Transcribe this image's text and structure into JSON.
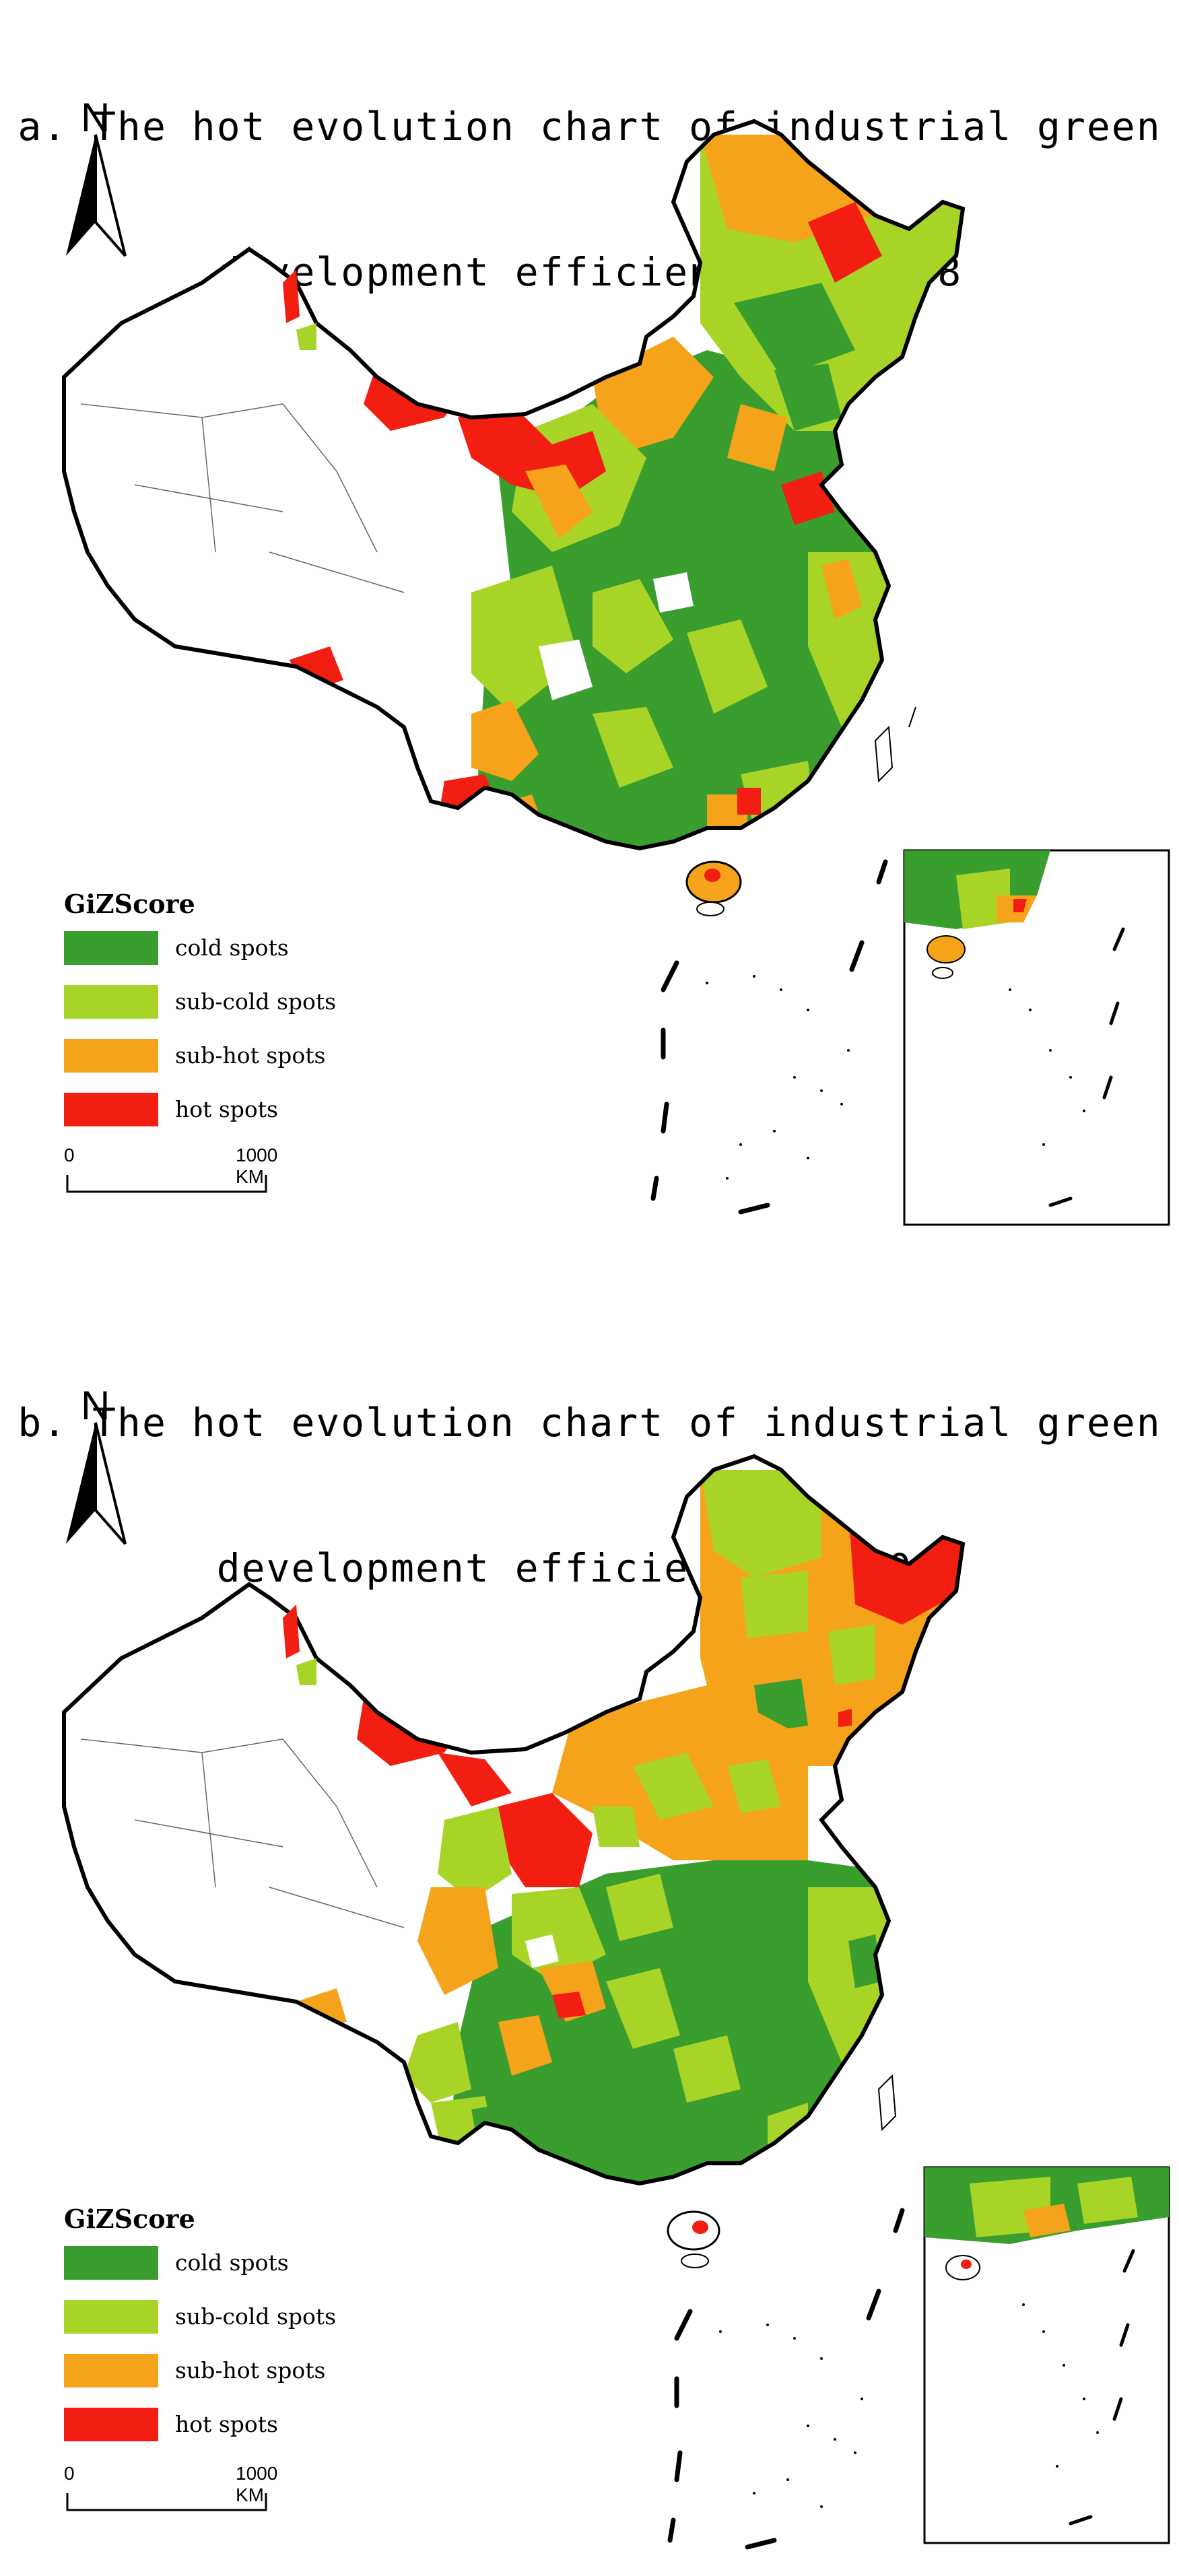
{
  "colors": {
    "cold": "#3a9e2f",
    "subcold": "#a8d428",
    "subhot": "#f5a31a",
    "hot": "#f21e12",
    "boundary": "#000000"
  },
  "icons": {
    "north_arrow": "north-arrow-icon"
  },
  "panels": [
    {
      "title_line1": "a. The hot evolution chart of industrial green",
      "title_line2": "development efficiency in 2008",
      "north": "N",
      "legend": {
        "title": "GiZScore",
        "items": [
          {
            "label": "cold spots",
            "color": "#3a9e2f"
          },
          {
            "label": "sub-cold spots",
            "color": "#a8d428"
          },
          {
            "label": "sub-hot spots",
            "color": "#f5a31a"
          },
          {
            "label": "hot spots",
            "color": "#f21e12"
          }
        ]
      },
      "scale": {
        "start": "0",
        "end": "1000 KM"
      }
    },
    {
      "title_line1": "b. The hot evolution chart of industrial green",
      "title_line2": "development efficiency in 2018",
      "north": "N",
      "legend": {
        "title": "GiZScore",
        "items": [
          {
            "label": "cold spots",
            "color": "#3a9e2f"
          },
          {
            "label": "sub-cold spots",
            "color": "#a8d428"
          },
          {
            "label": "sub-hot spots",
            "color": "#f5a31a"
          },
          {
            "label": "hot spots",
            "color": "#f21e12"
          }
        ]
      },
      "scale": {
        "start": "0",
        "end": "1000 KM"
      }
    }
  ]
}
